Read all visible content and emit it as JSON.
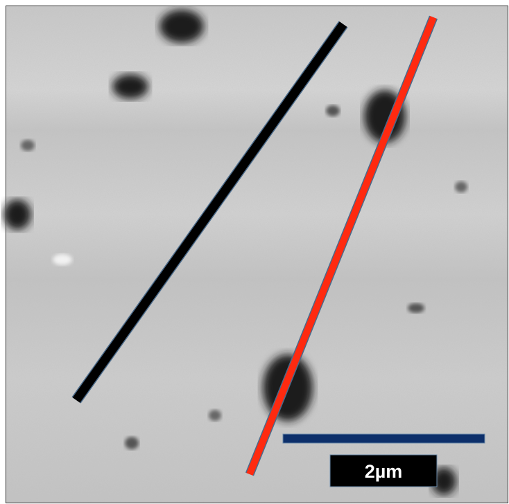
{
  "scale_bar": {
    "label": "2µm"
  }
}
